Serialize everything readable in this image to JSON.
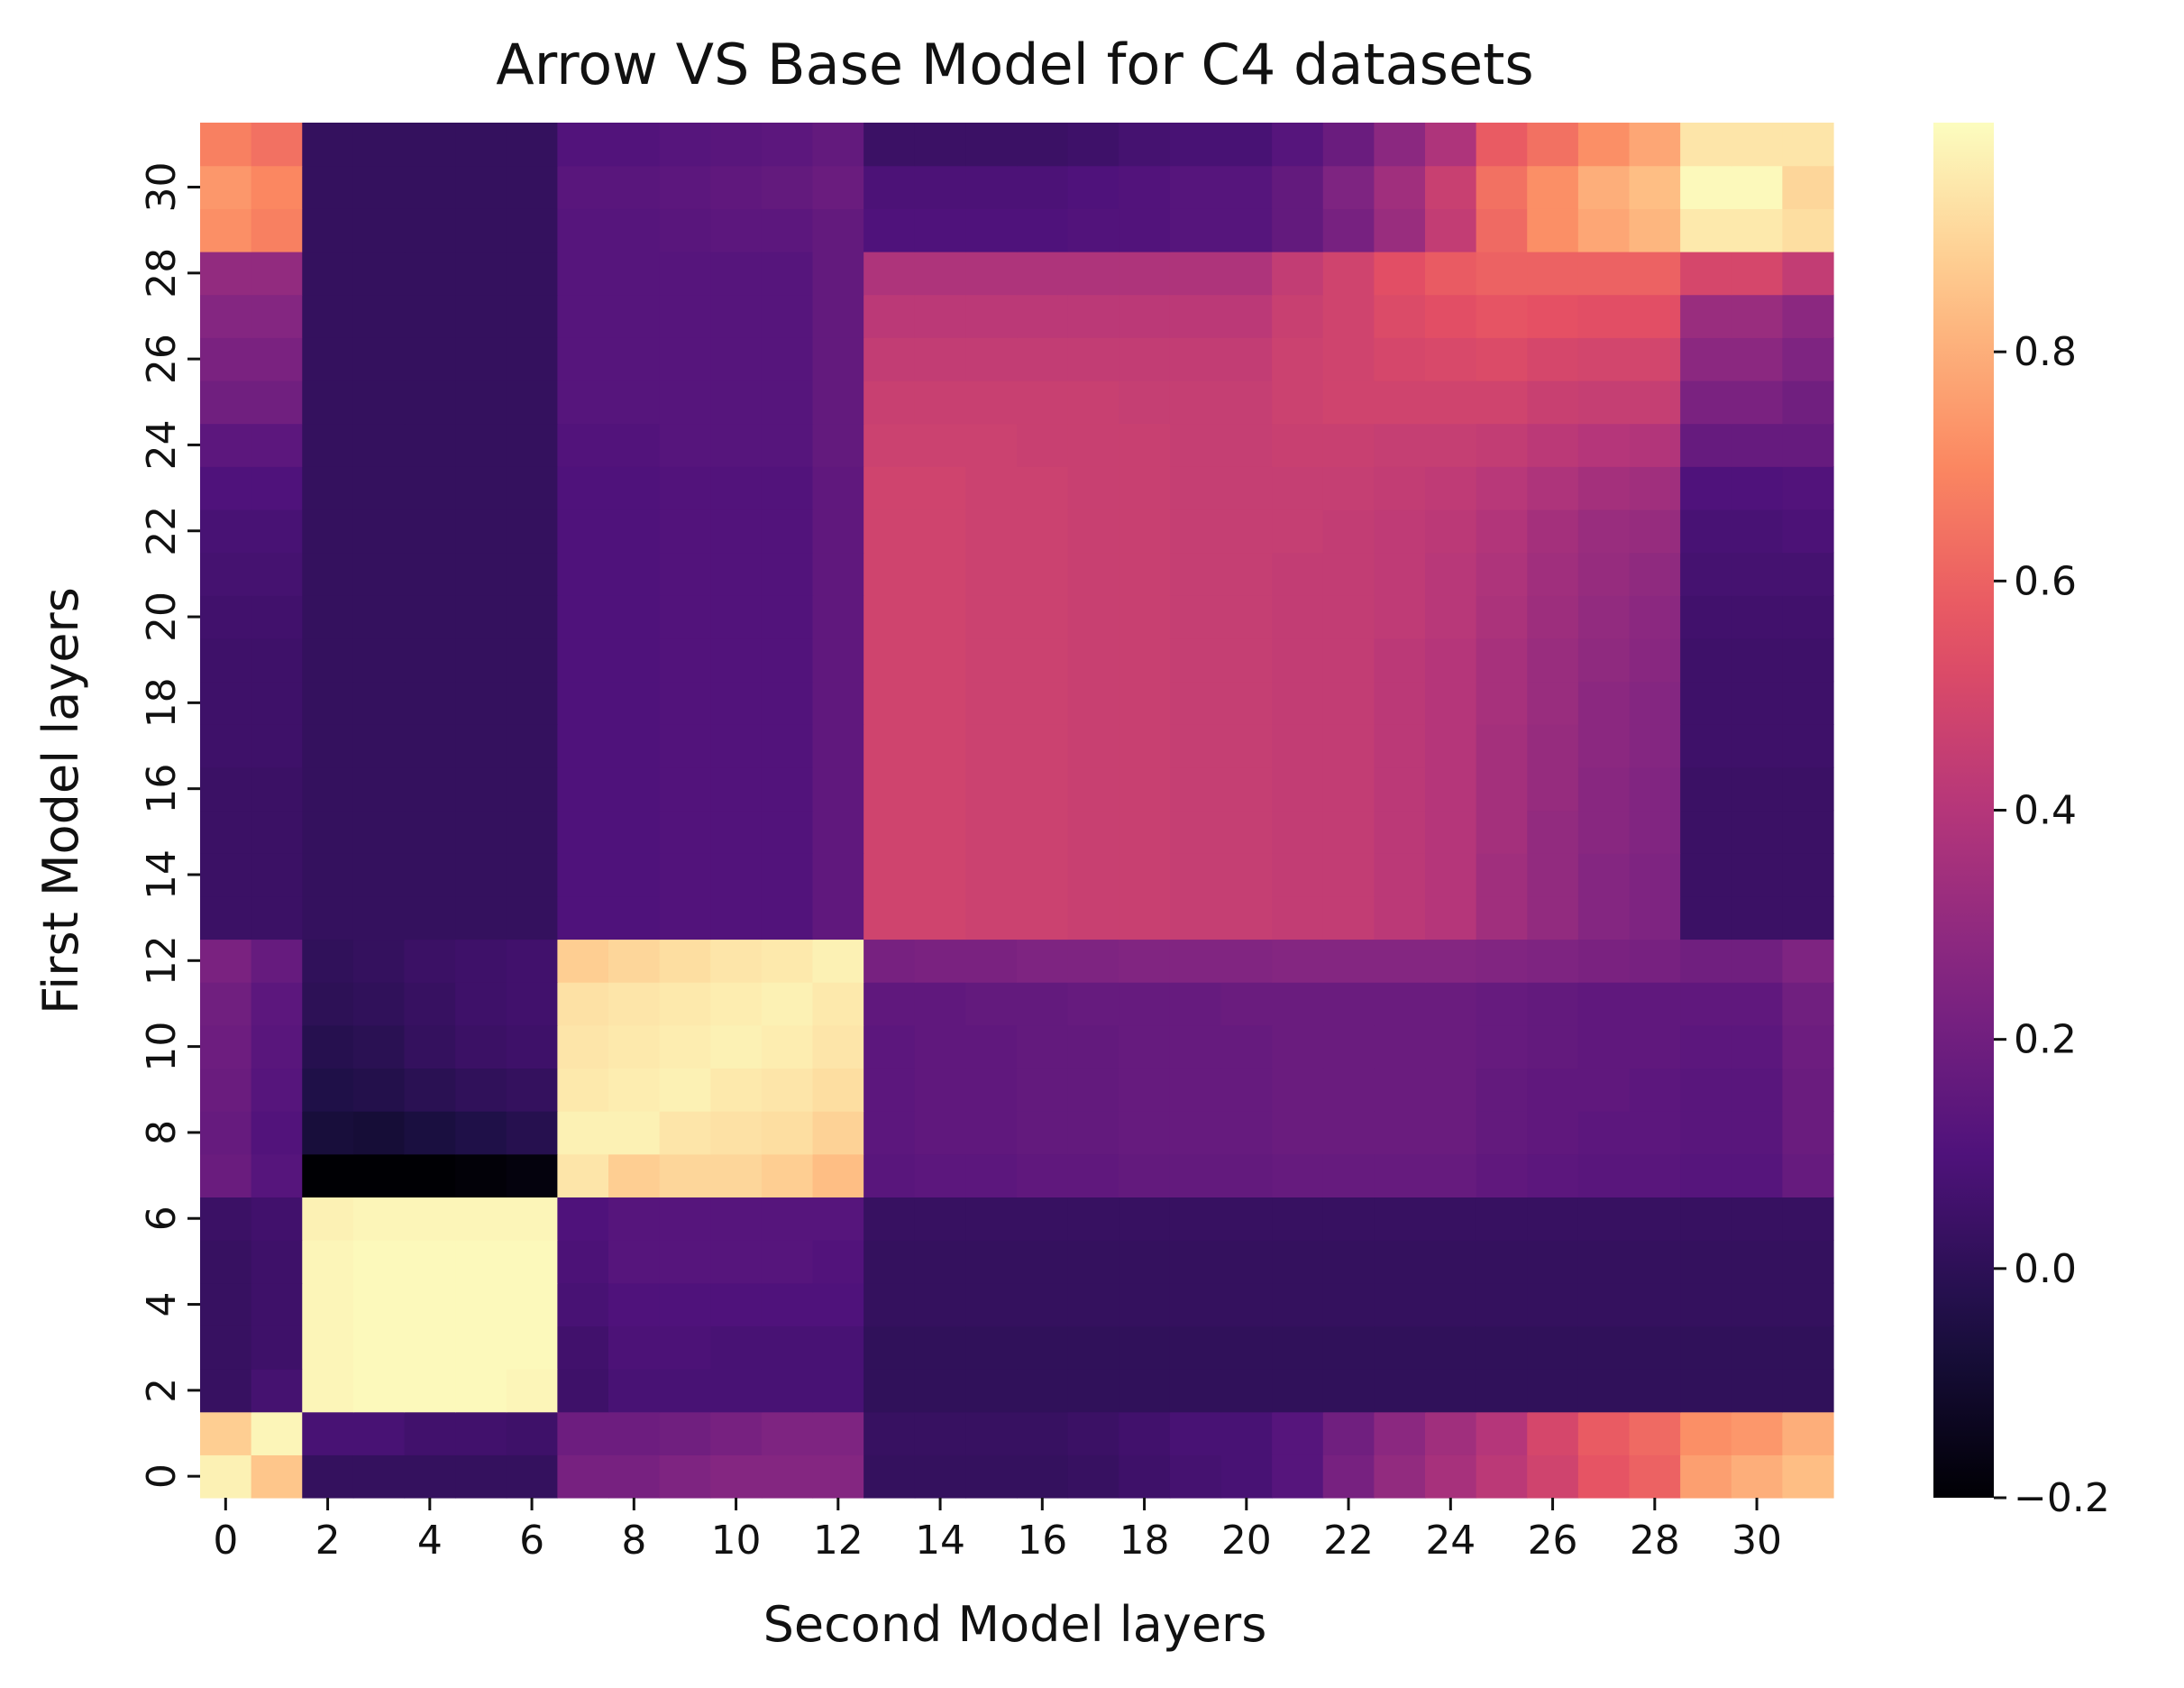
{
  "chart_data": {
    "type": "heatmap",
    "title": "Arrow VS Base Model for C4 datasets",
    "xlabel": "Second Model layers",
    "ylabel": "First Model layers",
    "n_rows": 32,
    "n_cols": 32,
    "x_tick_labels": [
      "0",
      "2",
      "4",
      "6",
      "8",
      "10",
      "12",
      "14",
      "16",
      "18",
      "20",
      "22",
      "24",
      "26",
      "28",
      "30"
    ],
    "y_tick_labels": [
      "0",
      "2",
      "4",
      "6",
      "8",
      "10",
      "12",
      "14",
      "16",
      "18",
      "20",
      "22",
      "24",
      "26",
      "28",
      "30"
    ],
    "colorbar": {
      "colormap": "magma",
      "vmin": -0.2,
      "vmax": 1.0,
      "tick_labels": [
        "−0.2",
        "0.0",
        "0.2",
        "0.4",
        "0.6",
        "0.8"
      ]
    },
    "values": [
      [
        0.97,
        0.86,
        0.02,
        0.02,
        0.02,
        0.02,
        0.02,
        0.22,
        0.22,
        0.24,
        0.26,
        0.26,
        0.26,
        0.02,
        0.02,
        0.02,
        0.02,
        0.03,
        0.05,
        0.07,
        0.08,
        0.12,
        0.22,
        0.3,
        0.36,
        0.42,
        0.48,
        0.56,
        0.6,
        0.76,
        0.8,
        0.84
      ],
      [
        0.88,
        0.98,
        0.08,
        0.08,
        0.06,
        0.06,
        0.05,
        0.19,
        0.19,
        0.2,
        0.22,
        0.24,
        0.24,
        0.03,
        0.03,
        0.03,
        0.03,
        0.04,
        0.06,
        0.08,
        0.08,
        0.12,
        0.2,
        0.28,
        0.34,
        0.4,
        0.5,
        0.58,
        0.62,
        0.72,
        0.74,
        0.8
      ],
      [
        0.03,
        0.07,
        0.98,
        0.99,
        0.99,
        0.99,
        0.98,
        0.05,
        0.08,
        0.08,
        0.08,
        0.08,
        0.08,
        0.01,
        0.01,
        0.01,
        0.01,
        0.01,
        0.01,
        0.01,
        0.01,
        0.01,
        0.01,
        0.01,
        0.01,
        0.01,
        0.01,
        0.01,
        0.01,
        0.01,
        0.01,
        0.01
      ],
      [
        0.03,
        0.05,
        0.98,
        0.99,
        0.99,
        0.99,
        0.99,
        0.06,
        0.09,
        0.09,
        0.08,
        0.08,
        0.08,
        0.01,
        0.01,
        0.01,
        0.01,
        0.01,
        0.01,
        0.01,
        0.01,
        0.01,
        0.01,
        0.01,
        0.01,
        0.01,
        0.01,
        0.01,
        0.01,
        0.01,
        0.01,
        0.01
      ],
      [
        0.03,
        0.05,
        0.98,
        0.99,
        0.99,
        0.99,
        0.99,
        0.08,
        0.1,
        0.1,
        0.1,
        0.1,
        0.1,
        0.02,
        0.02,
        0.02,
        0.02,
        0.02,
        0.02,
        0.02,
        0.02,
        0.02,
        0.02,
        0.02,
        0.02,
        0.02,
        0.02,
        0.02,
        0.02,
        0.02,
        0.02,
        0.02
      ],
      [
        0.03,
        0.05,
        0.98,
        0.99,
        0.99,
        0.99,
        0.99,
        0.09,
        0.12,
        0.12,
        0.12,
        0.12,
        0.11,
        0.02,
        0.02,
        0.02,
        0.02,
        0.02,
        0.02,
        0.02,
        0.02,
        0.02,
        0.02,
        0.02,
        0.02,
        0.02,
        0.02,
        0.02,
        0.02,
        0.02,
        0.02,
        0.02
      ],
      [
        0.04,
        0.06,
        0.97,
        0.98,
        0.98,
        0.98,
        0.98,
        0.1,
        0.12,
        0.12,
        0.12,
        0.12,
        0.12,
        0.03,
        0.03,
        0.03,
        0.03,
        0.03,
        0.03,
        0.03,
        0.03,
        0.03,
        0.03,
        0.03,
        0.03,
        0.03,
        0.03,
        0.03,
        0.03,
        0.03,
        0.03,
        0.03
      ],
      [
        0.18,
        0.12,
        -0.2,
        -0.2,
        -0.2,
        -0.19,
        -0.18,
        0.94,
        0.88,
        0.9,
        0.9,
        0.88,
        0.84,
        0.13,
        0.14,
        0.14,
        0.15,
        0.15,
        0.16,
        0.16,
        0.16,
        0.17,
        0.17,
        0.17,
        0.17,
        0.15,
        0.14,
        0.13,
        0.13,
        0.12,
        0.12,
        0.17
      ],
      [
        0.17,
        0.11,
        -0.07,
        -0.08,
        -0.06,
        -0.04,
        -0.02,
        0.97,
        0.97,
        0.94,
        0.93,
        0.92,
        0.89,
        0.14,
        0.15,
        0.15,
        0.16,
        0.16,
        0.17,
        0.17,
        0.17,
        0.18,
        0.18,
        0.18,
        0.18,
        0.16,
        0.15,
        0.14,
        0.14,
        0.13,
        0.13,
        0.18
      ],
      [
        0.18,
        0.12,
        -0.04,
        -0.03,
        -0.01,
        0.01,
        0.02,
        0.95,
        0.96,
        0.97,
        0.95,
        0.94,
        0.92,
        0.14,
        0.15,
        0.15,
        0.16,
        0.16,
        0.17,
        0.17,
        0.17,
        0.18,
        0.18,
        0.18,
        0.18,
        0.16,
        0.15,
        0.15,
        0.14,
        0.13,
        0.13,
        0.18
      ],
      [
        0.19,
        0.13,
        -0.02,
        -0.01,
        0.02,
        0.04,
        0.05,
        0.94,
        0.95,
        0.96,
        0.97,
        0.96,
        0.94,
        0.14,
        0.15,
        0.15,
        0.16,
        0.16,
        0.17,
        0.17,
        0.17,
        0.18,
        0.18,
        0.18,
        0.18,
        0.17,
        0.16,
        0.15,
        0.15,
        0.14,
        0.14,
        0.19
      ],
      [
        0.2,
        0.14,
        0.0,
        0.01,
        0.03,
        0.05,
        0.06,
        0.93,
        0.94,
        0.95,
        0.96,
        0.97,
        0.95,
        0.15,
        0.15,
        0.16,
        0.16,
        0.17,
        0.17,
        0.17,
        0.18,
        0.18,
        0.18,
        0.18,
        0.18,
        0.17,
        0.16,
        0.15,
        0.15,
        0.15,
        0.15,
        0.2
      ],
      [
        0.23,
        0.17,
        0.01,
        0.02,
        0.04,
        0.05,
        0.06,
        0.88,
        0.9,
        0.92,
        0.94,
        0.95,
        0.97,
        0.22,
        0.23,
        0.23,
        0.24,
        0.24,
        0.25,
        0.25,
        0.25,
        0.26,
        0.26,
        0.26,
        0.26,
        0.25,
        0.24,
        0.23,
        0.22,
        0.2,
        0.2,
        0.24
      ],
      [
        0.04,
        0.04,
        0.02,
        0.02,
        0.02,
        0.02,
        0.02,
        0.1,
        0.1,
        0.11,
        0.11,
        0.11,
        0.15,
        0.48,
        0.48,
        0.47,
        0.47,
        0.46,
        0.46,
        0.45,
        0.45,
        0.44,
        0.44,
        0.42,
        0.4,
        0.34,
        0.3,
        0.26,
        0.24,
        0.04,
        0.04,
        0.04
      ],
      [
        0.04,
        0.04,
        0.02,
        0.02,
        0.02,
        0.02,
        0.02,
        0.1,
        0.1,
        0.11,
        0.11,
        0.11,
        0.15,
        0.48,
        0.48,
        0.47,
        0.47,
        0.46,
        0.46,
        0.45,
        0.45,
        0.44,
        0.44,
        0.42,
        0.4,
        0.34,
        0.3,
        0.26,
        0.24,
        0.04,
        0.04,
        0.04
      ],
      [
        0.04,
        0.04,
        0.02,
        0.02,
        0.02,
        0.02,
        0.02,
        0.1,
        0.1,
        0.11,
        0.11,
        0.11,
        0.15,
        0.48,
        0.48,
        0.47,
        0.47,
        0.46,
        0.46,
        0.45,
        0.45,
        0.44,
        0.44,
        0.42,
        0.4,
        0.35,
        0.3,
        0.27,
        0.25,
        0.04,
        0.04,
        0.04
      ],
      [
        0.04,
        0.04,
        0.02,
        0.02,
        0.02,
        0.02,
        0.02,
        0.1,
        0.1,
        0.11,
        0.11,
        0.11,
        0.15,
        0.48,
        0.48,
        0.47,
        0.47,
        0.46,
        0.46,
        0.45,
        0.45,
        0.44,
        0.44,
        0.42,
        0.4,
        0.35,
        0.31,
        0.27,
        0.25,
        0.04,
        0.04,
        0.04
      ],
      [
        0.05,
        0.05,
        0.02,
        0.02,
        0.02,
        0.02,
        0.02,
        0.1,
        0.1,
        0.11,
        0.11,
        0.11,
        0.15,
        0.48,
        0.48,
        0.47,
        0.47,
        0.46,
        0.46,
        0.45,
        0.45,
        0.44,
        0.44,
        0.42,
        0.4,
        0.35,
        0.31,
        0.28,
        0.26,
        0.05,
        0.05,
        0.05
      ],
      [
        0.05,
        0.05,
        0.02,
        0.02,
        0.02,
        0.02,
        0.02,
        0.1,
        0.1,
        0.11,
        0.11,
        0.11,
        0.15,
        0.48,
        0.48,
        0.47,
        0.47,
        0.46,
        0.46,
        0.45,
        0.45,
        0.44,
        0.44,
        0.42,
        0.4,
        0.36,
        0.32,
        0.28,
        0.26,
        0.05,
        0.05,
        0.05
      ],
      [
        0.05,
        0.05,
        0.02,
        0.02,
        0.02,
        0.02,
        0.02,
        0.1,
        0.1,
        0.11,
        0.11,
        0.11,
        0.15,
        0.48,
        0.48,
        0.47,
        0.47,
        0.46,
        0.46,
        0.45,
        0.45,
        0.44,
        0.44,
        0.42,
        0.4,
        0.36,
        0.32,
        0.29,
        0.27,
        0.05,
        0.05,
        0.05
      ],
      [
        0.06,
        0.06,
        0.02,
        0.02,
        0.02,
        0.02,
        0.02,
        0.1,
        0.1,
        0.11,
        0.11,
        0.11,
        0.15,
        0.48,
        0.48,
        0.47,
        0.47,
        0.46,
        0.46,
        0.45,
        0.45,
        0.44,
        0.44,
        0.43,
        0.41,
        0.37,
        0.33,
        0.3,
        0.28,
        0.06,
        0.06,
        0.06
      ],
      [
        0.07,
        0.07,
        0.02,
        0.02,
        0.02,
        0.02,
        0.02,
        0.1,
        0.1,
        0.11,
        0.11,
        0.11,
        0.15,
        0.48,
        0.48,
        0.47,
        0.47,
        0.46,
        0.46,
        0.45,
        0.45,
        0.44,
        0.44,
        0.43,
        0.41,
        0.38,
        0.34,
        0.31,
        0.29,
        0.07,
        0.07,
        0.07
      ],
      [
        0.08,
        0.08,
        0.02,
        0.02,
        0.02,
        0.02,
        0.02,
        0.1,
        0.1,
        0.11,
        0.11,
        0.11,
        0.15,
        0.48,
        0.48,
        0.47,
        0.47,
        0.46,
        0.46,
        0.45,
        0.45,
        0.45,
        0.44,
        0.43,
        0.42,
        0.39,
        0.35,
        0.32,
        0.31,
        0.08,
        0.08,
        0.09
      ],
      [
        0.1,
        0.1,
        0.02,
        0.02,
        0.02,
        0.02,
        0.02,
        0.1,
        0.1,
        0.11,
        0.11,
        0.11,
        0.15,
        0.48,
        0.48,
        0.47,
        0.47,
        0.46,
        0.46,
        0.45,
        0.45,
        0.45,
        0.45,
        0.44,
        0.43,
        0.41,
        0.38,
        0.35,
        0.34,
        0.1,
        0.1,
        0.11
      ],
      [
        0.14,
        0.14,
        0.02,
        0.02,
        0.02,
        0.02,
        0.02,
        0.11,
        0.11,
        0.12,
        0.12,
        0.12,
        0.16,
        0.47,
        0.47,
        0.47,
        0.46,
        0.46,
        0.46,
        0.45,
        0.45,
        0.46,
        0.46,
        0.45,
        0.45,
        0.44,
        0.42,
        0.4,
        0.39,
        0.17,
        0.17,
        0.17
      ],
      [
        0.2,
        0.2,
        0.02,
        0.02,
        0.02,
        0.02,
        0.02,
        0.12,
        0.12,
        0.12,
        0.12,
        0.12,
        0.16,
        0.46,
        0.46,
        0.46,
        0.46,
        0.46,
        0.45,
        0.45,
        0.45,
        0.47,
        0.48,
        0.48,
        0.48,
        0.48,
        0.46,
        0.45,
        0.45,
        0.23,
        0.23,
        0.2
      ],
      [
        0.23,
        0.23,
        0.02,
        0.02,
        0.02,
        0.02,
        0.02,
        0.12,
        0.12,
        0.12,
        0.12,
        0.12,
        0.16,
        0.44,
        0.44,
        0.44,
        0.44,
        0.44,
        0.44,
        0.44,
        0.44,
        0.47,
        0.48,
        0.5,
        0.51,
        0.52,
        0.5,
        0.49,
        0.49,
        0.28,
        0.28,
        0.24
      ],
      [
        0.26,
        0.26,
        0.02,
        0.02,
        0.02,
        0.02,
        0.02,
        0.12,
        0.12,
        0.12,
        0.12,
        0.12,
        0.16,
        0.42,
        0.42,
        0.42,
        0.42,
        0.42,
        0.42,
        0.42,
        0.42,
        0.46,
        0.48,
        0.52,
        0.54,
        0.56,
        0.55,
        0.54,
        0.54,
        0.32,
        0.32,
        0.28
      ],
      [
        0.3,
        0.3,
        0.02,
        0.02,
        0.02,
        0.02,
        0.02,
        0.12,
        0.12,
        0.12,
        0.12,
        0.12,
        0.16,
        0.38,
        0.38,
        0.38,
        0.38,
        0.38,
        0.38,
        0.38,
        0.38,
        0.44,
        0.48,
        0.54,
        0.58,
        0.6,
        0.6,
        0.6,
        0.6,
        0.5,
        0.5,
        0.44
      ],
      [
        0.72,
        0.68,
        0.02,
        0.02,
        0.02,
        0.02,
        0.02,
        0.12,
        0.12,
        0.13,
        0.14,
        0.14,
        0.16,
        0.1,
        0.1,
        0.1,
        0.1,
        0.11,
        0.11,
        0.12,
        0.12,
        0.16,
        0.22,
        0.32,
        0.44,
        0.62,
        0.72,
        0.78,
        0.82,
        0.95,
        0.95,
        0.92
      ],
      [
        0.74,
        0.7,
        0.02,
        0.02,
        0.02,
        0.02,
        0.02,
        0.13,
        0.13,
        0.14,
        0.15,
        0.16,
        0.18,
        0.09,
        0.09,
        0.09,
        0.09,
        0.1,
        0.11,
        0.12,
        0.12,
        0.16,
        0.24,
        0.34,
        0.46,
        0.64,
        0.72,
        0.8,
        0.84,
        0.99,
        0.99,
        0.9
      ],
      [
        0.68,
        0.64,
        0.02,
        0.02,
        0.02,
        0.02,
        0.02,
        0.11,
        0.11,
        0.12,
        0.13,
        0.14,
        0.16,
        0.04,
        0.04,
        0.04,
        0.04,
        0.05,
        0.07,
        0.08,
        0.08,
        0.12,
        0.18,
        0.28,
        0.38,
        0.58,
        0.64,
        0.72,
        0.78,
        0.94,
        0.94,
        0.94
      ]
    ]
  }
}
